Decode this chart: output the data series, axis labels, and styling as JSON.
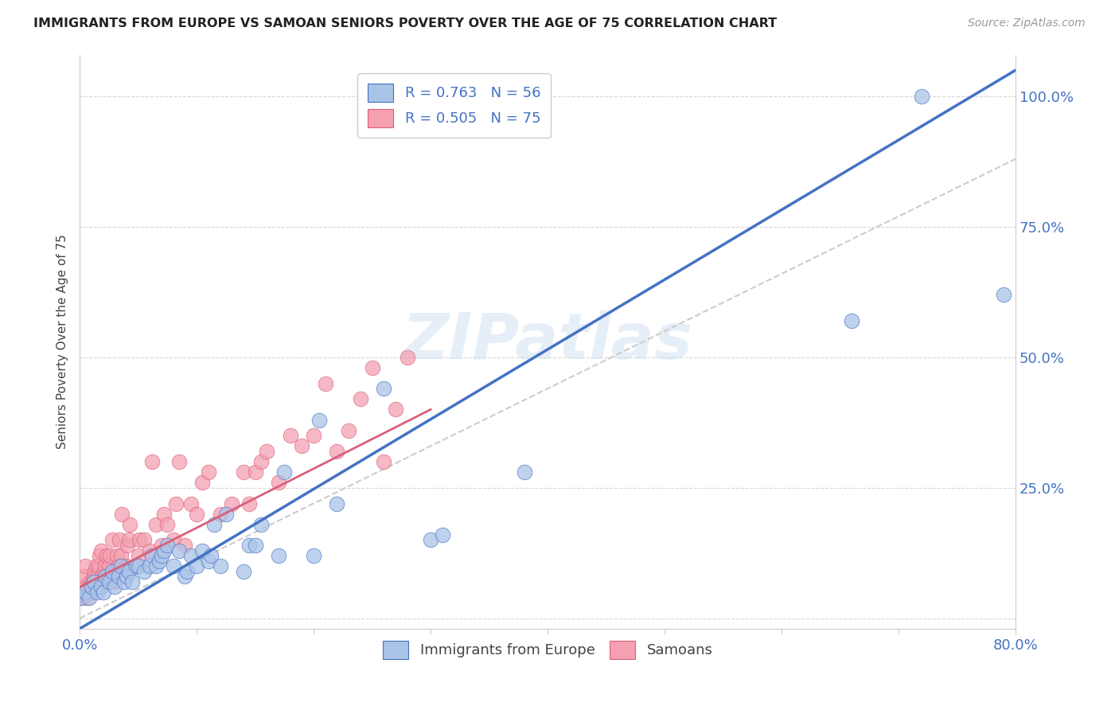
{
  "title": "IMMIGRANTS FROM EUROPE VS SAMOAN SENIORS POVERTY OVER THE AGE OF 75 CORRELATION CHART",
  "source": "Source: ZipAtlas.com",
  "ylabel": "Seniors Poverty Over the Age of 75",
  "xlim": [
    0.0,
    0.8
  ],
  "ylim": [
    -0.02,
    1.08
  ],
  "xticks": [
    0.0,
    0.1,
    0.2,
    0.3,
    0.4,
    0.5,
    0.6,
    0.7,
    0.8
  ],
  "xticklabels": [
    "0.0%",
    "",
    "",
    "",
    "",
    "",
    "",
    "",
    "80.0%"
  ],
  "yticks": [
    0.0,
    0.25,
    0.5,
    0.75,
    1.0
  ],
  "yticklabels": [
    "",
    "25.0%",
    "50.0%",
    "75.0%",
    "100.0%"
  ],
  "grid_color": "#d8d8d8",
  "background_color": "#ffffff",
  "watermark": "ZIPatlas",
  "color_blue": "#aac4e8",
  "color_pink": "#f4a0b0",
  "line_blue": "#4472c4",
  "line_pink": "#d9607a",
  "line_gray": "#cccccc",
  "europe_x": [
    0.001,
    0.005,
    0.008,
    0.01,
    0.012,
    0.015,
    0.018,
    0.02,
    0.022,
    0.025,
    0.028,
    0.03,
    0.033,
    0.035,
    0.038,
    0.04,
    0.042,
    0.045,
    0.048,
    0.05,
    0.055,
    0.06,
    0.062,
    0.065,
    0.068,
    0.07,
    0.072,
    0.075,
    0.08,
    0.085,
    0.09,
    0.092,
    0.095,
    0.1,
    0.105,
    0.11,
    0.112,
    0.115,
    0.12,
    0.125,
    0.14,
    0.145,
    0.15,
    0.155,
    0.17,
    0.175,
    0.2,
    0.205,
    0.22,
    0.26,
    0.3,
    0.31,
    0.38,
    0.66,
    0.72,
    0.79
  ],
  "europe_y": [
    0.04,
    0.05,
    0.04,
    0.06,
    0.07,
    0.05,
    0.06,
    0.05,
    0.08,
    0.07,
    0.09,
    0.06,
    0.08,
    0.1,
    0.07,
    0.08,
    0.09,
    0.07,
    0.1,
    0.1,
    0.09,
    0.1,
    0.12,
    0.1,
    0.11,
    0.12,
    0.13,
    0.14,
    0.1,
    0.13,
    0.08,
    0.09,
    0.12,
    0.1,
    0.13,
    0.11,
    0.12,
    0.18,
    0.1,
    0.2,
    0.09,
    0.14,
    0.14,
    0.18,
    0.12,
    0.28,
    0.12,
    0.38,
    0.22,
    0.44,
    0.15,
    0.16,
    0.28,
    0.57,
    1.0,
    0.62
  ],
  "samoan_x": [
    0.001,
    0.002,
    0.003,
    0.004,
    0.005,
    0.006,
    0.007,
    0.008,
    0.009,
    0.01,
    0.011,
    0.012,
    0.013,
    0.014,
    0.015,
    0.016,
    0.017,
    0.018,
    0.019,
    0.02,
    0.021,
    0.022,
    0.023,
    0.024,
    0.025,
    0.026,
    0.027,
    0.028,
    0.03,
    0.031,
    0.032,
    0.033,
    0.034,
    0.035,
    0.036,
    0.04,
    0.041,
    0.042,
    0.043,
    0.05,
    0.051,
    0.055,
    0.06,
    0.062,
    0.065,
    0.07,
    0.072,
    0.075,
    0.08,
    0.082,
    0.085,
    0.09,
    0.095,
    0.1,
    0.105,
    0.11,
    0.12,
    0.13,
    0.14,
    0.145,
    0.15,
    0.155,
    0.16,
    0.17,
    0.18,
    0.19,
    0.2,
    0.21,
    0.22,
    0.23,
    0.24,
    0.25,
    0.26,
    0.27,
    0.28
  ],
  "samoan_y": [
    0.04,
    0.05,
    0.06,
    0.08,
    0.1,
    0.04,
    0.05,
    0.06,
    0.07,
    0.05,
    0.07,
    0.08,
    0.09,
    0.1,
    0.08,
    0.1,
    0.12,
    0.13,
    0.08,
    0.07,
    0.09,
    0.1,
    0.12,
    0.08,
    0.1,
    0.12,
    0.08,
    0.15,
    0.07,
    0.09,
    0.12,
    0.1,
    0.15,
    0.12,
    0.2,
    0.1,
    0.14,
    0.15,
    0.18,
    0.12,
    0.15,
    0.15,
    0.13,
    0.3,
    0.18,
    0.14,
    0.2,
    0.18,
    0.15,
    0.22,
    0.3,
    0.14,
    0.22,
    0.2,
    0.26,
    0.28,
    0.2,
    0.22,
    0.28,
    0.22,
    0.28,
    0.3,
    0.32,
    0.26,
    0.35,
    0.33,
    0.35,
    0.45,
    0.32,
    0.36,
    0.42,
    0.48,
    0.3,
    0.4,
    0.5
  ],
  "blue_line_x": [
    0.0,
    0.8
  ],
  "blue_line_y": [
    -0.02,
    1.05
  ],
  "pink_line_x": [
    0.0,
    0.3
  ],
  "pink_line_y": [
    0.06,
    0.4
  ],
  "gray_line_x": [
    0.0,
    0.8
  ],
  "gray_line_y": [
    0.0,
    0.88
  ]
}
